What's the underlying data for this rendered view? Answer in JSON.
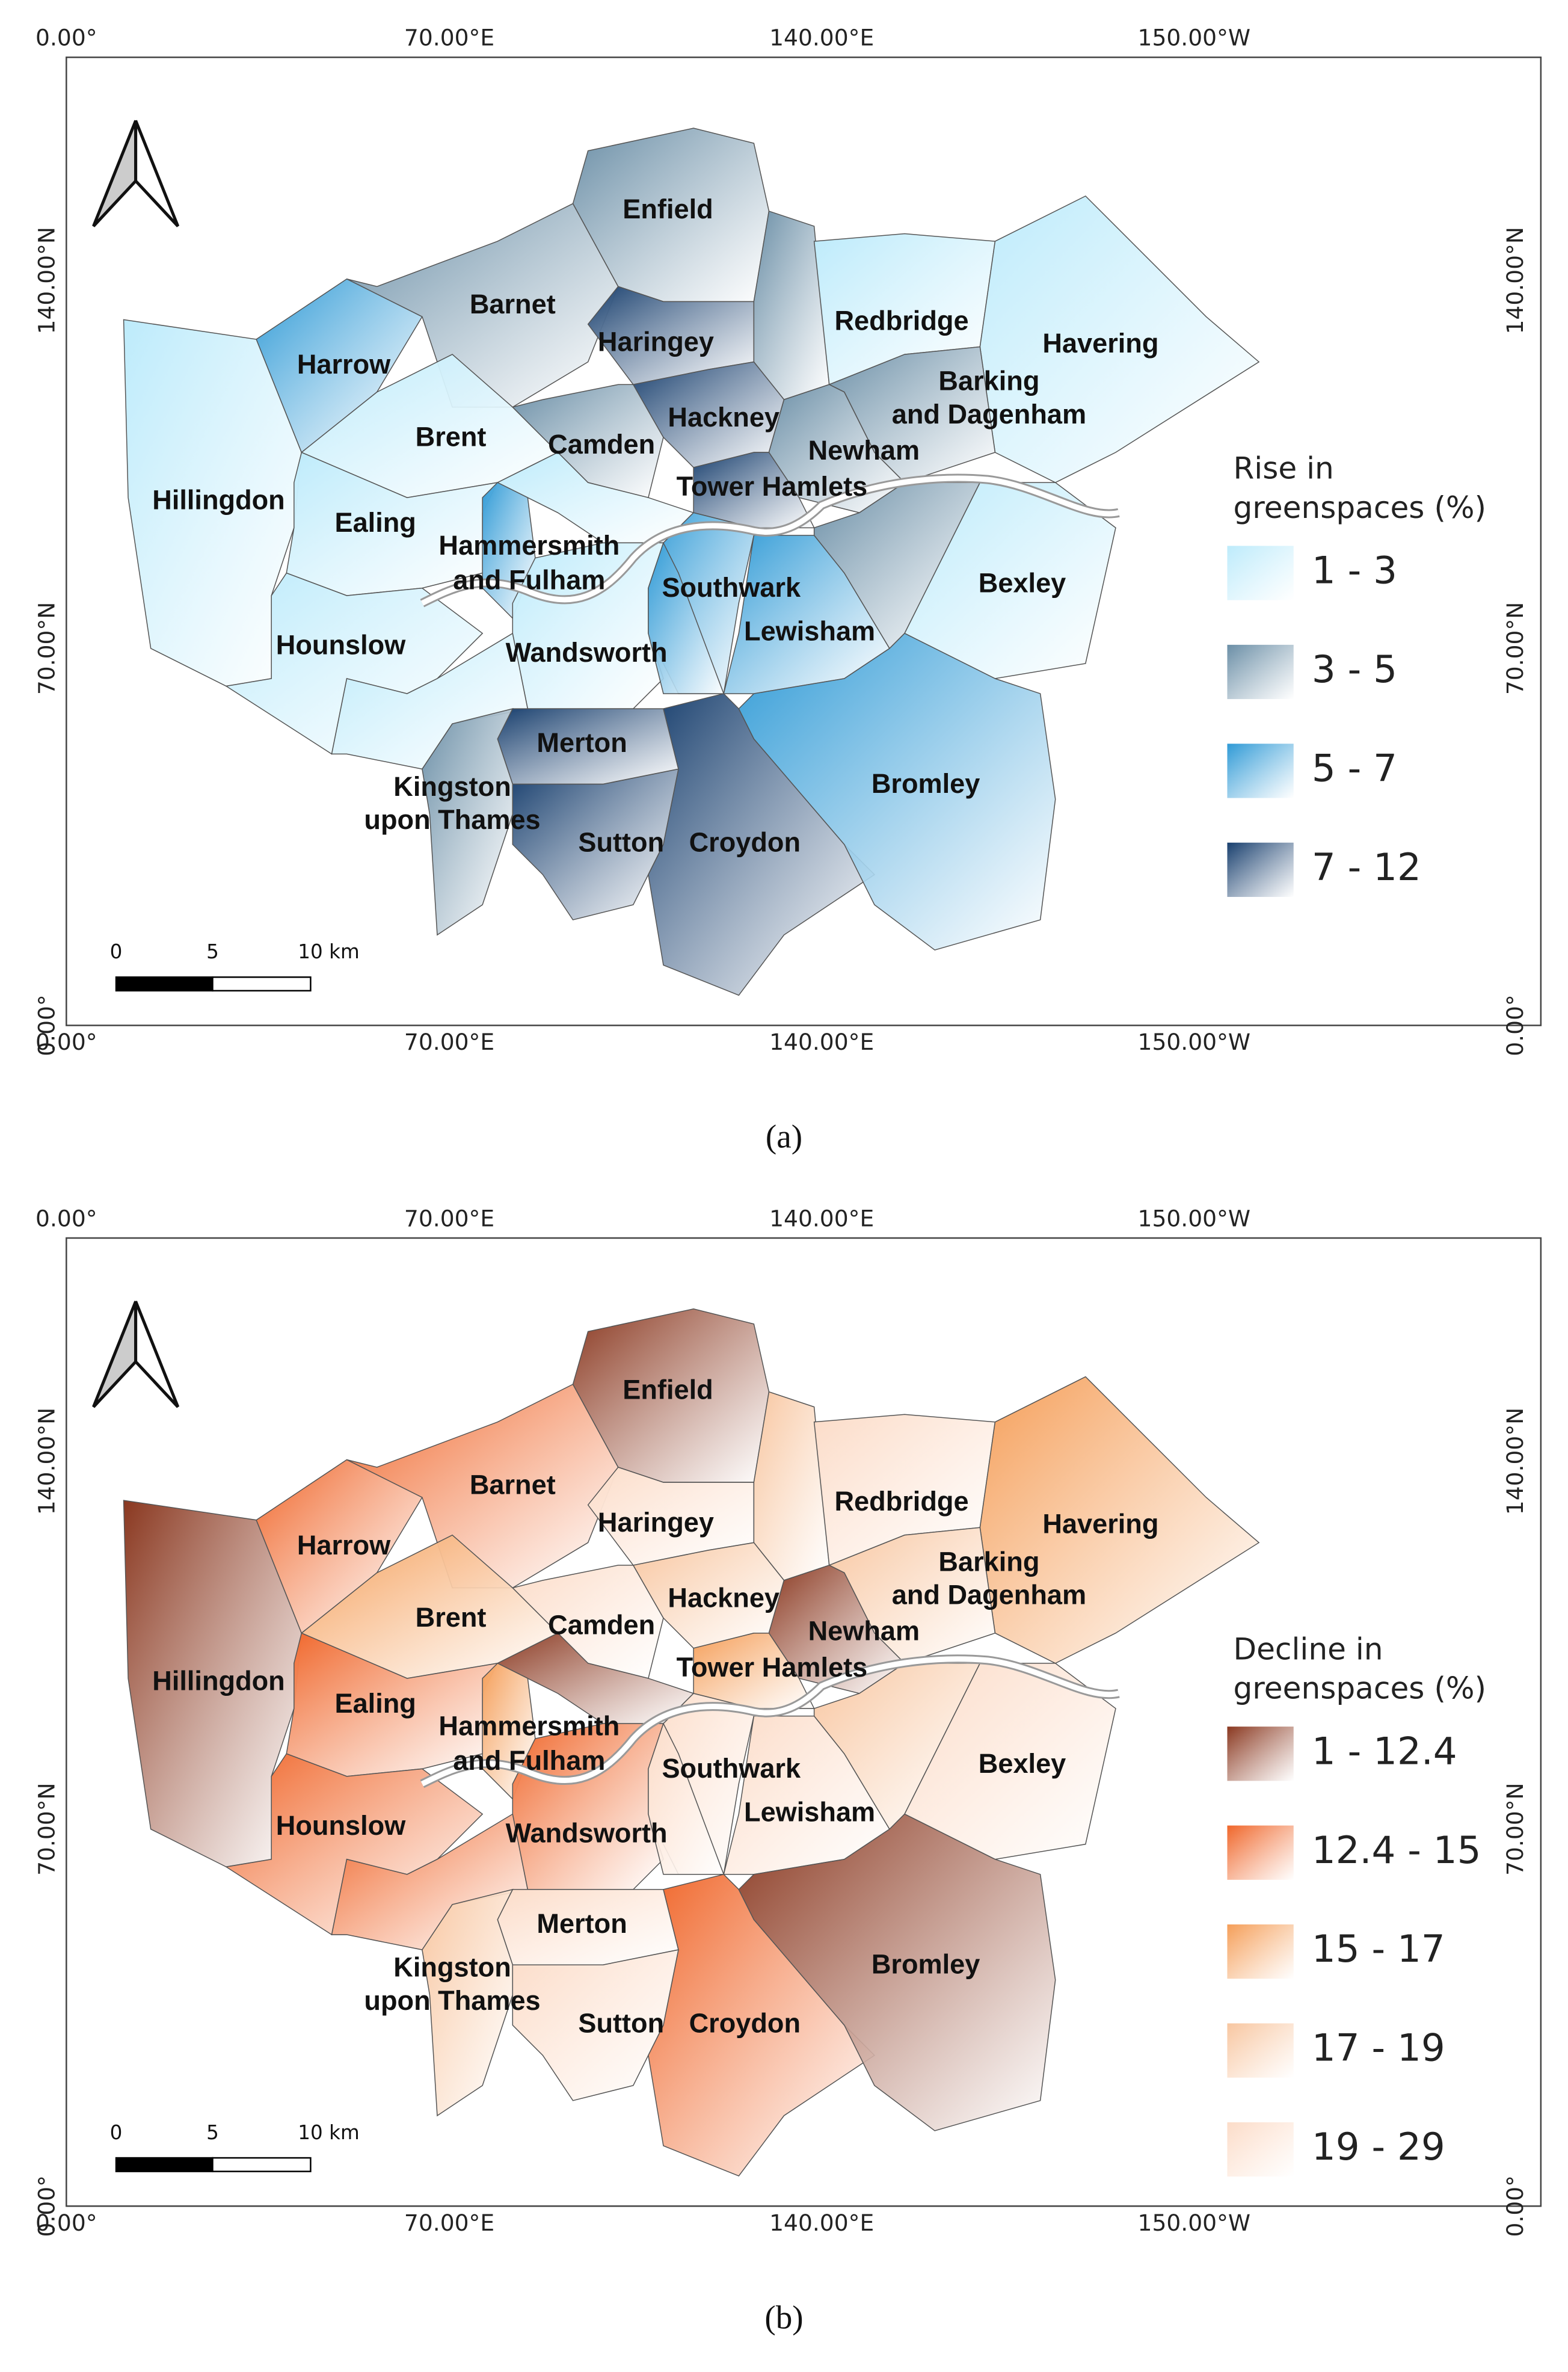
{
  "panels": [
    {
      "caption": "(a)",
      "legend_title": [
        "Rise in",
        "greenspaces (%)"
      ],
      "legend_items": [
        "1 - 3",
        "3 - 5",
        "5 - 7",
        "7 - 12"
      ],
      "axis_labels": {
        "top": [
          "0.00°",
          "70.00°E",
          "140.00°E",
          "150.00°W"
        ],
        "bottom": [
          "0.00°",
          "70.00°E",
          "140.00°E",
          "150.00°W"
        ],
        "left": [
          "140.00°N",
          "70.00°N",
          "0.00°"
        ],
        "right": [
          "140.00°N",
          "70.00°N",
          "0.00°"
        ]
      },
      "scale_bar": [
        "0",
        "5",
        "10 km"
      ],
      "boroughs": [
        "Enfield",
        "Barnet",
        "Haringey",
        "Harrow",
        "Redbridge",
        "Havering",
        "Barking",
        "and Dagenham",
        "Hackney",
        "Brent",
        "Camden",
        "Newham",
        "Tower Hamlets",
        "Hillingdon",
        "Ealing",
        "Hammersmith",
        "and Fulham",
        "Southwark",
        "Bexley",
        "Hounslow",
        "Wandsworth",
        "Lewisham",
        "Merton",
        "Bromley",
        "Kingston",
        "upon Thames",
        "Sutton",
        "Croydon"
      ]
    },
    {
      "caption": "(b)",
      "legend_title": [
        "Decline in",
        "greenspaces (%)"
      ],
      "legend_items": [
        "1 - 12.4",
        "12.4 - 15",
        "15 - 17",
        "17 - 19",
        "19 - 29"
      ],
      "axis_labels": {
        "top": [
          "0.00°",
          "70.00°E",
          "140.00°E",
          "150.00°W"
        ],
        "bottom": [
          "0.00°",
          "70.00°E",
          "140.00°E",
          "150.00°W"
        ],
        "left": [
          "140.00°N",
          "70.00°N",
          "0.00°"
        ],
        "right": [
          "140.00°N",
          "70.00°N",
          "0.00°"
        ]
      },
      "scale_bar": [
        "0",
        "5",
        "10 km"
      ],
      "boroughs": [
        "Enfield",
        "Barnet",
        "Haringey",
        "Harrow",
        "Redbridge",
        "Havering",
        "Barking",
        "and Dagenham",
        "Hackney",
        "Brent",
        "Camden",
        "Newham",
        "Tower Hamlets",
        "Hillingdon",
        "Ealing",
        "Hammersmith",
        "and Fulham",
        "Southwark",
        "Bexley",
        "Hounslow",
        "Wandsworth",
        "Lewisham",
        "Merton",
        "Bromley",
        "Kingston",
        "upon Thames",
        "Sutton",
        "Croydon"
      ]
    }
  ]
}
